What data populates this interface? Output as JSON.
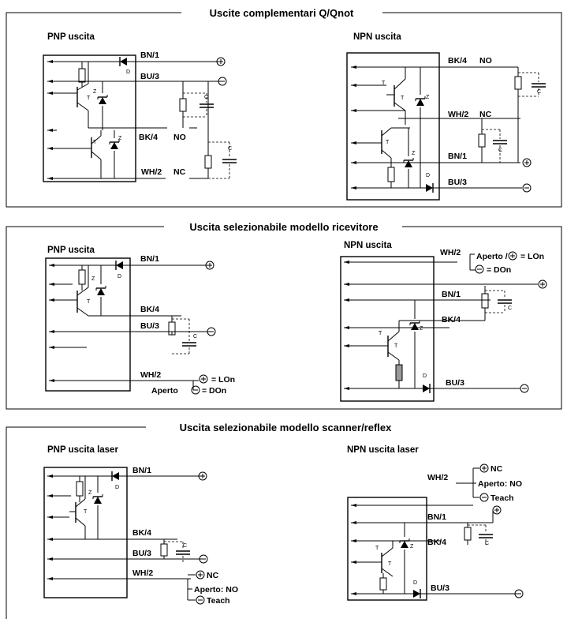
{
  "sections": [
    {
      "title": "Uscite complementari Q/Qnot",
      "left_heading": "PNP uscita",
      "right_heading": "NPN uscita"
    },
    {
      "title": "Uscita selezionabile modello ricevitore",
      "left_heading": "PNP uscita",
      "right_heading": "NPN uscita"
    },
    {
      "title": "Uscita selezionabile modello scanner/reflex",
      "left_heading": "PNP uscita laser",
      "right_heading": "NPN uscita laser"
    }
  ],
  "wires": {
    "bn": "BN/1",
    "bu": "BU/3",
    "bk": "BK/4",
    "wh": "WH/2"
  },
  "outputs": {
    "no": "NO",
    "nc": "NC"
  },
  "components": {
    "transistor": "T",
    "zener": "Z",
    "diode": "D",
    "capacitor": "C"
  },
  "ricevitore": {
    "pnp_lon": "= LOn",
    "pnp_aperto": "Aperto",
    "pnp_don": "= DOn",
    "npn_aperto": "Aperto /",
    "npn_lon": "= LOn",
    "npn_don": "= DOn"
  },
  "scanner": {
    "nc": "NC",
    "aperto": "Aperto: NO",
    "teach": "Teach"
  }
}
